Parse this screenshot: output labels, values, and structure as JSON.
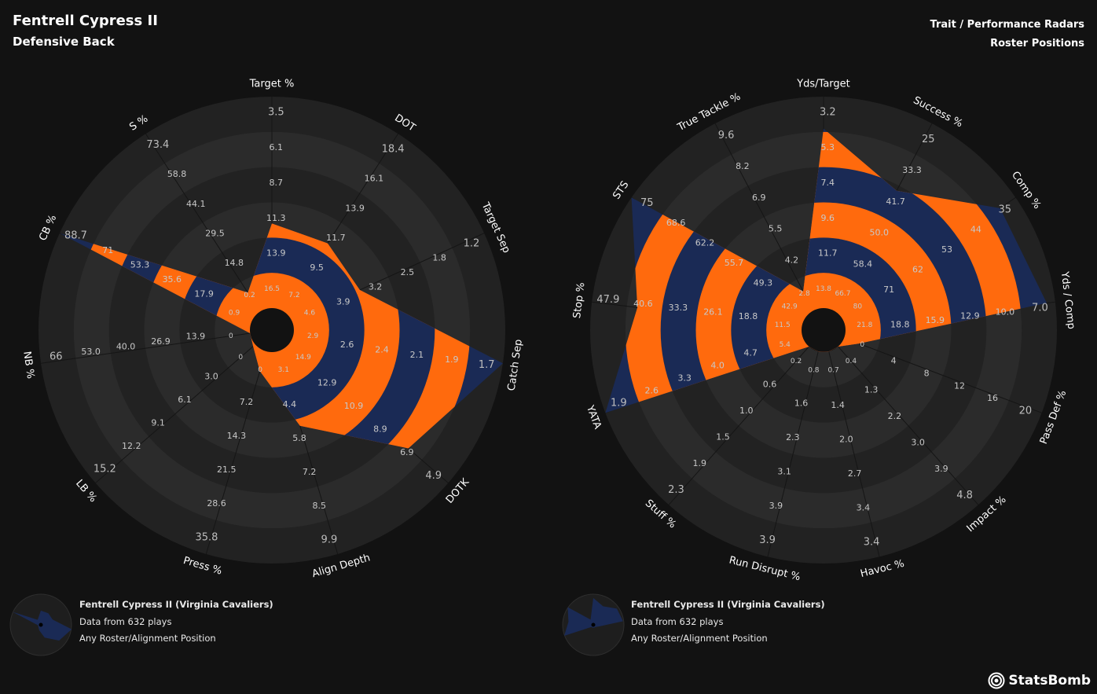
{
  "header": {
    "player": "Fentrell Cypress II",
    "position": "Defensive Back",
    "right_title_1": "Trait / Performance Radars",
    "right_title_2": "Roster Positions"
  },
  "legend": {
    "line1": "Fentrell Cypress II (Virginia Cavaliers)",
    "line2": "Data from 632 plays",
    "line3": "Any Roster/Alignment Position"
  },
  "brand": "StatsBomb",
  "colors": {
    "orange": "#ff6a0d",
    "navy": "#1a2a55",
    "ring": "#2b2b2b",
    "bg": "#121212"
  },
  "chart_data": [
    {
      "type": "radar",
      "axes": [
        {
          "label": "Target %",
          "ticks": [
            "16.5",
            "13.9",
            "11.3",
            "8.7",
            "6.1",
            "3.5"
          ],
          "value": 11.3
        },
        {
          "label": "DOT",
          "ticks": [
            "7.2",
            "9.5",
            "11.7",
            "13.9",
            "16.1",
            "18.4"
          ],
          "value": 11.5
        },
        {
          "label": "Target Sep",
          "ticks": [
            "4.6",
            "3.9",
            "3.2",
            "2.5",
            "1.8",
            "1.2"
          ],
          "value": 3.4
        },
        {
          "label": "Catch Sep",
          "ticks": [
            "2.9",
            "2.6",
            "2.4",
            "2.1",
            "1.9",
            "1.7"
          ],
          "value": 1.7
        },
        {
          "label": "DOTK",
          "ticks": [
            "14.9",
            "12.9",
            "10.9",
            "8.9",
            "6.9",
            "4.9"
          ],
          "value": 7.4
        },
        {
          "label": "Align Depth",
          "ticks": [
            "3.1",
            "4.4",
            "5.8",
            "7.2",
            "8.5",
            "9.9"
          ],
          "value": 5.6
        },
        {
          "label": "Press %",
          "ticks": [
            "0",
            "7.2",
            "14.3",
            "21.5",
            "28.6",
            "35.8"
          ],
          "value": 3.5
        },
        {
          "label": "LB %",
          "ticks": [
            "0",
            "3.0",
            "6.1",
            "9.1",
            "12.2",
            "15.2"
          ],
          "value": 0.2
        },
        {
          "label": "NB %",
          "ticks": [
            "0",
            "13.9",
            "26.9",
            "40.0",
            "53.0",
            "66"
          ],
          "value": 0
        },
        {
          "label": "CB %",
          "ticks": [
            "0.9",
            "17.9",
            "35.6",
            "53.3",
            "71",
            "88.7"
          ],
          "value": 88.7
        },
        {
          "label": "S %",
          "ticks": [
            "0.2",
            "14.8",
            "29.5",
            "44.1",
            "58.8",
            "73.4"
          ],
          "value": 8
        }
      ]
    },
    {
      "type": "radar",
      "axes": [
        {
          "label": "Yds/Target",
          "ticks": [
            "13.8",
            "11.7",
            "9.6",
            "7.4",
            "5.3",
            "3.2"
          ],
          "value": 4.8
        },
        {
          "label": "Success %",
          "ticks": [
            "66.7",
            "58.4",
            "50.0",
            "41.7",
            "33.3",
            "25"
          ],
          "value": 40
        },
        {
          "label": "Comp %",
          "ticks": [
            "80",
            "71",
            "62",
            "53",
            "44",
            "35"
          ],
          "value": 39
        },
        {
          "label": "Yds / Comp",
          "ticks": [
            "21.8",
            "18.8",
            "15.9",
            "12.9",
            "10.0",
            "7.0"
          ],
          "value": 7.6
        },
        {
          "label": "Pass Def %",
          "ticks": [
            "0",
            "4",
            "8",
            "12",
            "16",
            "20"
          ],
          "value": 1.5
        },
        {
          "label": "Impact %",
          "ticks": [
            "0.4",
            "1.3",
            "2.2",
            "3.0",
            "3.9",
            "4.8"
          ],
          "value": 0.4
        },
        {
          "label": "Havoc %",
          "ticks": [
            "0.7",
            "1.4",
            "2.0",
            "2.7",
            "3.4",
            "3.4"
          ],
          "value": 0.7
        },
        {
          "label": "Run Disrupt %",
          "ticks": [
            "0.8",
            "1.6",
            "2.3",
            "3.1",
            "3.9",
            "3.9"
          ],
          "value": 0.8
        },
        {
          "label": "Stuff %",
          "ticks": [
            "0.2",
            "0.6",
            "1.0",
            "1.5",
            "1.9",
            "2.3"
          ],
          "value": 0.2
        },
        {
          "label": "YATA",
          "ticks": [
            "5.4",
            "4.7",
            "4.0",
            "3.3",
            "2.6",
            "1.9"
          ],
          "value": 1.9
        },
        {
          "label": "Stop %",
          "ticks": [
            "11.5",
            "18.8",
            "26.1",
            "33.3",
            "40.6",
            "47.9"
          ],
          "value": 40
        },
        {
          "label": "STS",
          "ticks": [
            "42.9",
            "49.3",
            "55.7",
            "62.2",
            "68.6",
            "75"
          ],
          "value": 75
        },
        {
          "label": "True Tackle %",
          "ticks": [
            "2.8",
            "4.2",
            "5.5",
            "6.9",
            "8.2",
            "9.6"
          ],
          "value": 3.5
        }
      ]
    }
  ]
}
